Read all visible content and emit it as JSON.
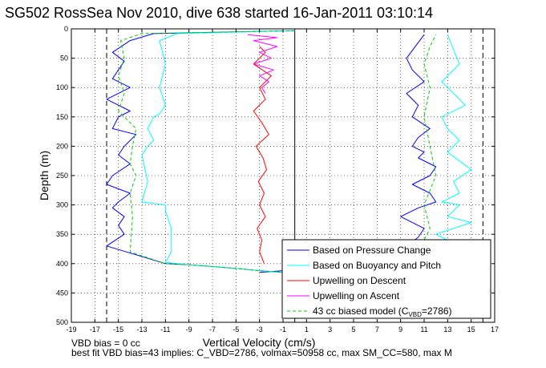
{
  "title": "SG502 RossSea Nov 2010, dive 638 started 16-Jan-2011 03:10:14",
  "notes": [
    "VBD bias = 0 cc",
    "best fit VBD bias=43 implies: C_VBD=2786, volmax=50958 cc, max SM_CC=580, max M"
  ],
  "chart_data": {
    "type": "line",
    "title": "SG502 RossSea Nov 2010, dive 638 started 16-Jan-2011 03:10:14",
    "xlabel": "Vertical Velocity (cm/s)",
    "ylabel": "Depth (m)",
    "xlim": [
      -19,
      17
    ],
    "ylim": [
      500,
      0
    ],
    "y_reversed": true,
    "grid": true,
    "xticks": [
      "-19",
      "-17",
      "-15",
      "-13",
      "-11",
      "-9",
      "-7",
      "-5",
      "-3",
      "-1",
      "1",
      "3",
      "5",
      "7",
      "9",
      "11",
      "13",
      "15",
      "17"
    ],
    "yticks": [
      "0",
      "50",
      "100",
      "150",
      "200",
      "250",
      "300",
      "350",
      "400",
      "450",
      "500"
    ],
    "reference_lines_x": [
      -16,
      0,
      16
    ],
    "legend_position": "bottom-right",
    "legend": [
      {
        "label": "Based on Pressure Change",
        "color": "#0000ff",
        "style": "solid"
      },
      {
        "label": "Based on Buoyancy and Pitch",
        "color": "#00ffff",
        "style": "solid"
      },
      {
        "label": "Upwelling on Descent",
        "color": "#ff0000",
        "style": "solid"
      },
      {
        "label": "Upwelling on Ascent",
        "color": "#ff00ff",
        "style": "solid"
      },
      {
        "label": "43 cc biased model (C",
        "sub": "VBD",
        "suffix": "=2786)",
        "color": "#00cc00",
        "style": "dashed"
      }
    ],
    "series": [
      {
        "name": "Based on Pressure Change",
        "color": "#0000ff",
        "x": [
          0,
          -12,
          -14,
          -15.5,
          -14.5,
          -15,
          -15.5,
          -14,
          -16,
          -14,
          -15,
          -15.5,
          -13.5,
          -14.5,
          -15,
          -14,
          -15.5,
          -16,
          -14,
          -15,
          -15.5,
          -14.5,
          -15,
          -14.5,
          -16,
          -13.5,
          -11,
          -9,
          -5,
          -3,
          -1
        ],
        "y": [
          3,
          8,
          20,
          40,
          55,
          70,
          85,
          100,
          120,
          140,
          150,
          170,
          180,
          200,
          215,
          230,
          250,
          265,
          280,
          295,
          305,
          320,
          335,
          350,
          370,
          385,
          400,
          402,
          408,
          412,
          415
        ]
      },
      {
        "name": "Based on Pressure Change (ascent)",
        "color": "#0000ff",
        "x": [
          -3,
          -1,
          4,
          8,
          10,
          9.5,
          10.5,
          11,
          9,
          10.5,
          12,
          11.5,
          10,
          11.5,
          12,
          10.5,
          11,
          10,
          10.5,
          11.5,
          10,
          10.5,
          9.5,
          11,
          10,
          9.5,
          11
        ],
        "y": [
          415,
          412,
          405,
          395,
          385,
          370,
          355,
          340,
          320,
          305,
          295,
          280,
          265,
          250,
          235,
          220,
          210,
          200,
          185,
          170,
          150,
          130,
          110,
          90,
          70,
          50,
          10
        ]
      },
      {
        "name": "Based on Buoyancy and Pitch",
        "color": "#00ffff",
        "x": [
          0,
          -10,
          -11.5,
          -11,
          -11.5,
          -11,
          -11.5,
          -12,
          -12.5,
          -12,
          -12.5,
          -13,
          -12.5,
          -13,
          -11,
          -11,
          -10.5,
          -10.5,
          -11,
          -9,
          -5,
          -3,
          -1
        ],
        "y": [
          3,
          8,
          20,
          60,
          100,
          130,
          145,
          150,
          170,
          190,
          200,
          215,
          260,
          295,
          300,
          310,
          340,
          380,
          398,
          402,
          408,
          412,
          415
        ]
      },
      {
        "name": "Based on Buoyancy and Pitch (ascent)",
        "color": "#00ffff",
        "x": [
          -1,
          6,
          12,
          14.5,
          12,
          13,
          12,
          13.5,
          15,
          13,
          14,
          12.5,
          14,
          13.5,
          15,
          13,
          14,
          13,
          12.5,
          14.5,
          13.5,
          12.5,
          14,
          13
        ],
        "y": [
          415,
          408,
          400,
          390,
          370,
          360,
          350,
          340,
          330,
          320,
          300,
          295,
          280,
          260,
          240,
          210,
          190,
          170,
          150,
          130,
          110,
          90,
          60,
          10
        ]
      },
      {
        "name": "Upwelling on Descent",
        "color": "#ff0000",
        "x": [
          -3,
          -2.5,
          -3.5,
          -2,
          -3,
          -2.5,
          -3.5,
          -2.8,
          -2.2,
          -3.3,
          -2.7,
          -2.4,
          -3.1,
          -2.6,
          -3,
          -2.5,
          -3.2,
          -2.8,
          -3,
          -2.6
        ],
        "y": [
          30,
          40,
          60,
          80,
          100,
          120,
          140,
          160,
          180,
          200,
          220,
          240,
          260,
          280,
          300,
          320,
          340,
          360,
          380,
          400
        ]
      },
      {
        "name": "Upwelling on Ascent",
        "color": "#ff00ff",
        "x": [
          -4,
          -1.5,
          -3.5,
          -1.5,
          -3,
          -2,
          -3.5,
          -1.8,
          -3,
          -2.2,
          -2.8,
          -2.5
        ],
        "y": [
          10,
          15,
          20,
          30,
          40,
          50,
          60,
          70,
          80,
          90,
          100,
          110
        ]
      },
      {
        "name": "43 cc biased model (C_VBD=2786)",
        "color": "#00cc00",
        "dashed": true,
        "x": [
          0,
          -13,
          -14.8,
          -14.5,
          -15,
          -14.5,
          -15,
          -14.5,
          -13.5,
          -13.8,
          -14,
          -13.5,
          -14,
          -13.8,
          -14,
          -11,
          -9,
          -5,
          -3,
          -1
        ],
        "y": [
          3,
          8,
          20,
          50,
          80,
          110,
          140,
          150,
          170,
          200,
          230,
          250,
          280,
          320,
          380,
          400,
          402,
          408,
          412,
          415
        ]
      },
      {
        "name": "43 cc biased model (ascent)",
        "color": "#00cc00",
        "dashed": true,
        "x": [
          -1,
          6,
          11,
          10.5,
          11,
          11.5,
          11,
          12,
          11.5,
          11,
          11.5,
          11,
          11.5,
          12
        ],
        "y": [
          415,
          408,
          400,
          380,
          360,
          340,
          300,
          250,
          200,
          150,
          100,
          60,
          30,
          10
        ]
      }
    ]
  }
}
